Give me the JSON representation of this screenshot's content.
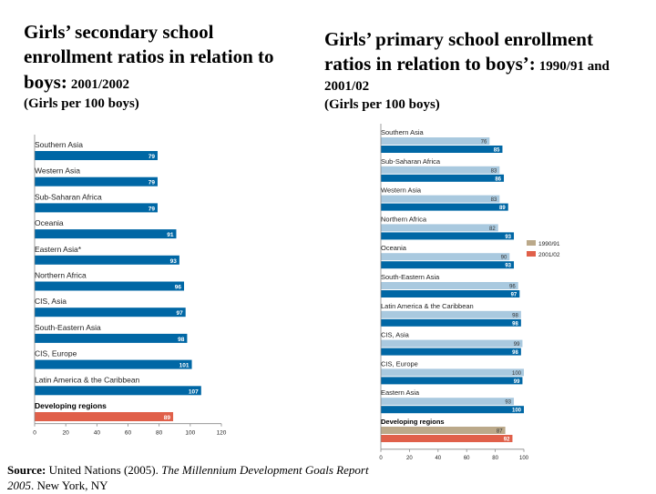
{
  "left": {
    "title_main": "Girls’ secondary school enrollment ratios in relation to boys:",
    "title_years": "2001/2002",
    "title_sub": "(Girls per 100 boys)"
  },
  "right": {
    "title_main": "Girls’ primary school enrollment ratios in relation to boys’:",
    "title_years": "1990/91 and 2001/02",
    "title_sub": "(Girls per 100 boys)"
  },
  "source": {
    "label": "Source:",
    "text_pre": "United Nations (2005).",
    "title": "The Millennium Development Goals Report 2005",
    "text_post": ". New York, NY"
  },
  "colors": {
    "bar_2001": "#0067a5",
    "bar_developing": "#e0604a",
    "bar_1990": "#a9c9df",
    "bar_developing_1990": "#bba98a",
    "axis": "#888888",
    "label": "#222222"
  },
  "chart_data": [
    {
      "type": "bar",
      "orientation": "horizontal",
      "categories": [
        "Southern Asia",
        "Western Asia",
        "Sub-Saharan Africa",
        "Oceania",
        "Eastern Asia*",
        "Northern Africa",
        "CIS, Asia",
        "South-Eastern Asia",
        "CIS, Europe",
        "Latin America & the Caribbean",
        "Developing regions"
      ],
      "values": [
        79,
        79,
        79,
        91,
        93,
        96,
        97,
        98,
        101,
        107,
        89
      ],
      "xlim": [
        0,
        120
      ],
      "xticks": [
        0,
        20,
        40,
        60,
        80,
        100,
        120
      ],
      "highlight_category": "Developing regions"
    },
    {
      "type": "bar",
      "orientation": "horizontal",
      "categories": [
        "Southern Asia",
        "Sub-Saharan Africa",
        "Western Asia",
        "Northern Africa",
        "Oceania",
        "South-Eastern Asia",
        "Latin America & the Caribbean",
        "CIS, Asia",
        "CIS, Europe",
        "Eastern Asia",
        "Developing regions"
      ],
      "series": [
        {
          "name": "1990/91",
          "values": [
            76,
            83,
            83,
            82,
            90,
            96,
            98,
            99,
            100,
            93,
            87
          ]
        },
        {
          "name": "2001/02",
          "values": [
            85,
            86,
            89,
            93,
            93,
            97,
            98,
            98,
            99,
            100,
            92
          ]
        }
      ],
      "xlim": [
        0,
        100
      ],
      "xticks": [
        0,
        20,
        40,
        60,
        80,
        100
      ],
      "legend": "right",
      "highlight_category": "Developing regions"
    }
  ]
}
